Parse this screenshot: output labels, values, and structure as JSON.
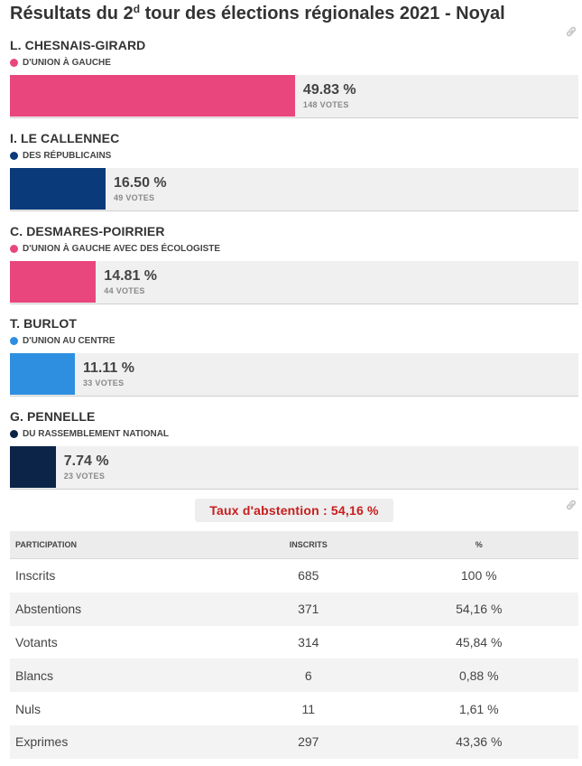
{
  "title_main": "Résultats du 2",
  "title_sup": "d",
  "title_rest": " tour des élections régionales 2021 - Noyal",
  "candidates": [
    {
      "name": "L. CHESNAIS-GIRARD",
      "party": "D'UNION À GAUCHE",
      "color": "#e8467c",
      "pct": 49.83,
      "pct_label": "49.83 %",
      "votes": "148 VOTES"
    },
    {
      "name": "I. LE CALLENNEC",
      "party": "DES RÉPUBLICAINS",
      "color": "#0b3a7b",
      "pct": 16.5,
      "pct_label": "16.50 %",
      "votes": "49 VOTES"
    },
    {
      "name": "C. DESMARES-POIRRIER",
      "party": "D'UNION À GAUCHE AVEC DES ÉCOLOGISTE",
      "color": "#e8467c",
      "pct": 14.81,
      "pct_label": "14.81 %",
      "votes": "44 VOTES"
    },
    {
      "name": "T. BURLOT",
      "party": "D'UNION AU CENTRE",
      "color": "#2e8fe0",
      "pct": 11.11,
      "pct_label": "11.11 %",
      "votes": "33 VOTES"
    },
    {
      "name": "G. PENNELLE",
      "party": "DU RASSEMBLEMENT NATIONAL",
      "color": "#0b2447",
      "pct": 7.74,
      "pct_label": "7.74 %",
      "votes": "23 VOTES"
    }
  ],
  "abstention_label": "Taux d'abstention : 54,16 %",
  "table": {
    "headers": [
      "PARTICIPATION",
      "INSCRITS",
      "%"
    ],
    "rows": [
      [
        "Inscrits",
        "685",
        "100 %"
      ],
      [
        "Abstentions",
        "371",
        "54,16 %"
      ],
      [
        "Votants",
        "314",
        "45,84 %"
      ],
      [
        "Blancs",
        "6",
        "0,88 %"
      ],
      [
        "Nuls",
        "11",
        "1,61 %"
      ],
      [
        "Exprimes",
        "297",
        "43,36 %"
      ]
    ]
  },
  "chart_data": {
    "type": "bar",
    "orientation": "horizontal",
    "categories": [
      "L. CHESNAIS-GIRARD",
      "I. LE CALLENNEC",
      "C. DESMARES-POIRRIER",
      "T. BURLOT",
      "G. PENNELLE"
    ],
    "values": [
      49.83,
      16.5,
      14.81,
      11.11,
      7.74
    ],
    "votes": [
      148,
      49,
      44,
      33,
      23
    ],
    "title": "Résultats du 2d tour des élections régionales 2021 - Noyal",
    "xlim": [
      0,
      100
    ]
  }
}
